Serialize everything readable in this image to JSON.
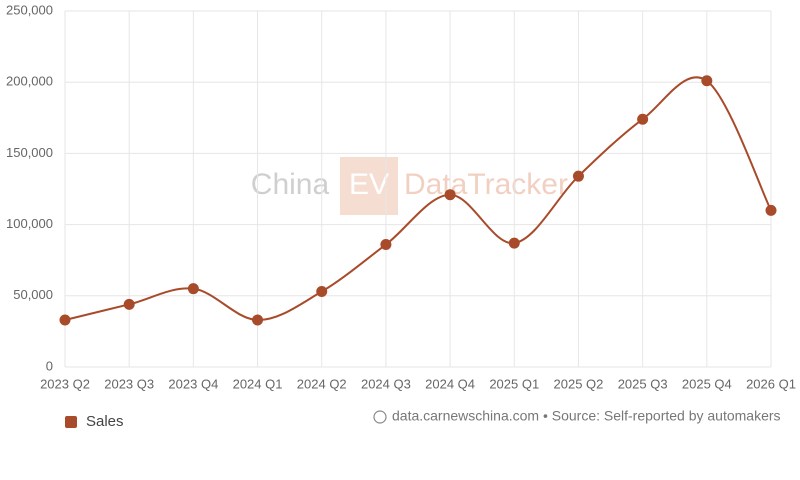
{
  "chart_data": {
    "type": "line",
    "watermark": {
      "left": "China",
      "badge": "EV",
      "right": "DataTracker"
    },
    "categories": [
      "2023 Q2",
      "2023 Q3",
      "2023 Q4",
      "2024 Q1",
      "2024 Q2",
      "2024 Q3",
      "2024 Q4",
      "2025 Q1",
      "2025 Q2",
      "2025 Q3",
      "2025 Q4",
      "2026 Q1"
    ],
    "series": [
      {
        "name": "Sales",
        "color": "#a84b2a",
        "values": [
          33000,
          44000,
          55000,
          33000,
          53000,
          86000,
          121000,
          87000,
          134000,
          174000,
          201000,
          110000
        ]
      }
    ],
    "ylim": [
      0,
      250000
    ],
    "yticks": [
      0,
      {
        "value": 50000,
        "label": "50,000"
      },
      {
        "value": 100000,
        "label": "100,000"
      },
      {
        "value": 150000,
        "label": "150,000"
      },
      {
        "value": 200000,
        "label": "200,000"
      },
      {
        "value": 250000,
        "label": "250,000"
      }
    ],
    "grid": true,
    "legend": "bottom-left",
    "source": "data.carnewschina.com • Source: Self-reported by automakers"
  }
}
